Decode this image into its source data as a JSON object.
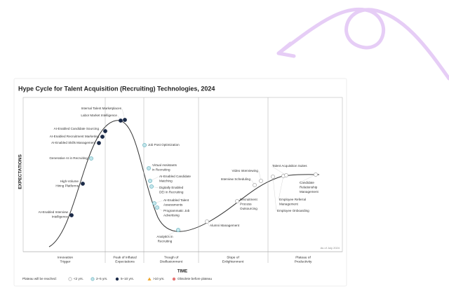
{
  "title": "Hype Cycle for Talent Acquisition (Recruiting) Technologies, 2024",
  "y_axis_label": "EXPECTATIONS",
  "x_axis_label": "TIME",
  "as_of": "As of July 2024",
  "phases": [
    [
      "Innovation",
      "Trigger"
    ],
    [
      "Peak of Inflated",
      "Expectations"
    ],
    [
      "Trough of",
      "Disillusionment"
    ],
    [
      "Slope of",
      "Enlightenment"
    ],
    [
      "Plateau of",
      "Productivity"
    ]
  ],
  "technologies": [
    [
      "Internal Talent Marketplaces"
    ],
    [
      "Labor Market Intelligence"
    ],
    [
      "AI-Enabled Candidate Sourcing"
    ],
    [
      "AI-Enabled Recruitment Marketing"
    ],
    [
      "AI-Enabled Skills Management"
    ],
    [
      "Generative AI in Recruiting"
    ],
    [
      "High-Volume",
      "Hiring Platforms"
    ],
    [
      "AI-Enabled Interview",
      "Intelligence"
    ],
    [
      "Job Post Optimization"
    ],
    [
      "Virtual Assistants",
      "in Recruiting"
    ],
    [
      "AI-Enabled Candidate",
      "Matching"
    ],
    [
      "Digitally Enabled",
      "DEI in Recruiting"
    ],
    [
      "AI-Enabled Talent",
      "Assessments"
    ],
    [
      "Programmatic Job",
      "Advertising"
    ],
    [
      "Analytics in",
      "Recruiting"
    ],
    [
      "Alumni Management"
    ],
    [
      "Recruitment",
      "Process",
      "Outsourcing"
    ],
    [
      "Interview Scheduling"
    ],
    [
      "Video Interviewing"
    ],
    [
      "Employee Onboarding"
    ],
    [
      "Employee Referral",
      "Management"
    ],
    [
      "Talent Acquisition Suites"
    ],
    [
      "Candidate",
      "Relationship",
      "Management"
    ]
  ],
  "legend": {
    "title": "Plateau will be reached:",
    "items": [
      "<2 yrs.",
      "2–5 yrs.",
      "5–10 yrs.",
      ">10 yrs.",
      "Obsolete before plateau"
    ]
  }
}
